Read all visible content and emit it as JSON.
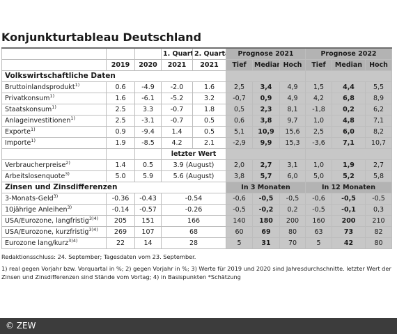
{
  "title": "Konjunkturtableau Deutschland",
  "header": {
    "q_row": [
      "1. Quartal",
      "2. Quartal"
    ],
    "prognose_2021": "Prognose 2021",
    "prognose_2022": "Prognose 2022",
    "years": [
      "2019",
      "2020",
      "2021",
      "2021"
    ],
    "stats": [
      "Tief",
      "Median",
      "Hoch",
      "Tief",
      "Median",
      "Hoch"
    ]
  },
  "sections": {
    "volkswirtschaft": "Volkswirtschaftliche Daten",
    "zinsen": "Zinsen und Zinsdifferenzen",
    "letzter_wert": "letzter Wert",
    "in_3_monaten": "In 3 Monaten",
    "in_12_monaten": "In 12 Monaten"
  },
  "rows": [
    {
      "label": "Bruttoinlandsprodukt",
      "sup": "1)",
      "y2019": "0.6",
      "y2020": "-4.9",
      "q1": "-2.0",
      "q2": "1.6",
      "p21": [
        "2,5",
        "3,4",
        "4,9"
      ],
      "p22": [
        "1,5",
        "4,4",
        "5,5"
      ]
    },
    {
      "label": "Privatkonsum",
      "sup": "1)",
      "y2019": "1.6",
      "y2020": "-6.1",
      "q1": "-5.2",
      "q2": "3.2",
      "p21": [
        "-0,7",
        "0,9",
        "4,9"
      ],
      "p22": [
        "4,2",
        "6,8",
        "8,9"
      ]
    },
    {
      "label": "Staatskonsum",
      "sup": "1)",
      "y2019": "2.5",
      "y2020": "3.3",
      "q1": "-0.7",
      "q2": "1.8",
      "p21": [
        "0,5",
        "2,3",
        "8,1"
      ],
      "p22": [
        "-1,8",
        "0,2",
        "6,2"
      ]
    },
    {
      "label": "Anlageinvestitionen",
      "sup": "1)",
      "y2019": "2.5",
      "y2020": "-3.1",
      "q1": "-0.7",
      "q2": "0.5",
      "p21": [
        "0,6",
        "3,8",
        "9,7"
      ],
      "p22": [
        "1,0",
        "4,8",
        "7,1"
      ]
    },
    {
      "label": "Exporte",
      "sup": "1)",
      "y2019": "0.9",
      "y2020": "-9.4",
      "q1": "1.4",
      "q2": "0.5",
      "p21": [
        "5,1",
        "10,9",
        "15,6"
      ],
      "p22": [
        "2,5",
        "6,0",
        "8,2"
      ]
    },
    {
      "label": "Importe",
      "sup": "1)",
      "y2019": "1.9",
      "y2020": "-8.5",
      "q1": "4.2",
      "q2": "2.1",
      "p21": [
        "-2,9",
        "9,9",
        "15,3"
      ],
      "p22": [
        "-3,6",
        "7,1",
        "10,7"
      ]
    }
  ],
  "rows2": [
    {
      "label": "Verbraucherpreise",
      "sup": "2)",
      "y2019": "1.4",
      "y2020": "0.5",
      "last": "3.9 (August)",
      "p21": [
        "2,0",
        "2,7",
        "3,1"
      ],
      "p22": [
        "1,0",
        "1,9",
        "2,7"
      ]
    },
    {
      "label": "Arbeitslosenquote",
      "sup": "3)",
      "y2019": "5.0",
      "y2020": "5.9",
      "last": "5.6 (August)",
      "p21": [
        "3,8",
        "5,7",
        "6,0"
      ],
      "p22": [
        "5,0",
        "5,2",
        "5,8"
      ]
    }
  ],
  "rows3": [
    {
      "label": "3-Monats-Geld",
      "sup": "3)",
      "y2019": "-0.36",
      "y2020": "-0.43",
      "last": "-0.54",
      "p21": [
        "-0,6",
        "-0,5",
        "-0,5"
      ],
      "p22": [
        "-0,6",
        "-0,5",
        "-0,5"
      ]
    },
    {
      "label": "10jährige Anleihen",
      "sup": "3)",
      "y2019": "-0.14",
      "y2020": "-0.57",
      "last": "-0.26",
      "p21": [
        "-0,5",
        "-0,2",
        "0,2"
      ],
      "p22": [
        "-0,5",
        "-0,1",
        "0,3"
      ]
    },
    {
      "label": "USA/Eurozone, langfristig",
      "sup": "3)4)",
      "y2019": "205",
      "y2020": "151",
      "last": "166",
      "p21": [
        "140",
        "180",
        "200"
      ],
      "p22": [
        "160",
        "200",
        "210"
      ]
    },
    {
      "label": "USA/Eurozone, kurzfristig",
      "sup": "3)4)",
      "y2019": "269",
      "y2020": "107",
      "last": "68",
      "p21": [
        "60",
        "69",
        "80"
      ],
      "p22": [
        "63",
        "73",
        "82"
      ]
    },
    {
      "label": "Eurozone lang/kurz",
      "sup": "3)4)",
      "y2019": "22",
      "y2020": "14",
      "last": "28",
      "p21": [
        "5",
        "31",
        "70"
      ],
      "p22": [
        "5",
        "42",
        "80"
      ]
    }
  ],
  "notes": {
    "redaktion": "Redaktionsschluss: 24. September; Tagesdaten vom 23. September.",
    "footnotes": "1) real gegen Vorjahr bzw. Vorquartal in %; 2) gegen Vorjahr in %; 3) Werte für 2019 und 2020 sind Jahresdurchschnitte. letzter Wert der Zinsen und Zinsdifferenzen sind Stände vom Vortag; 4) in Basispunkten *Schätzung"
  },
  "footer": "© ZEW"
}
